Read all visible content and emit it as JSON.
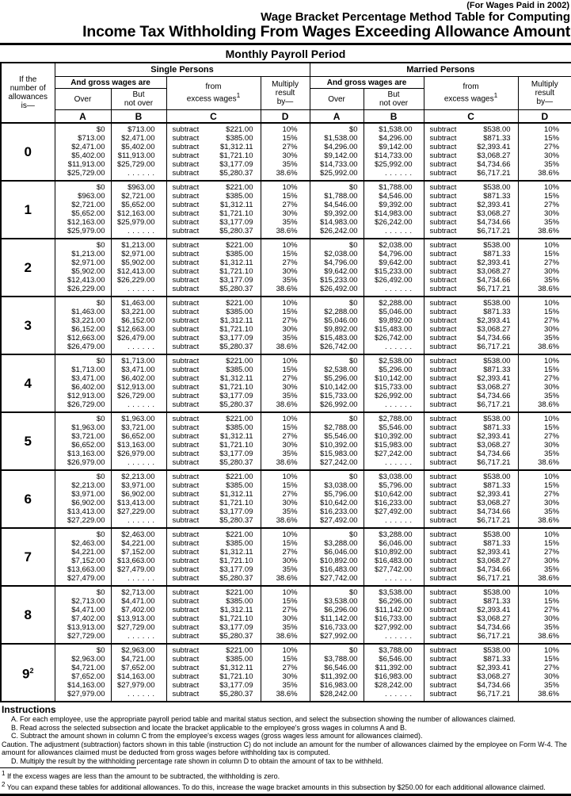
{
  "page": {
    "tagline": "(For Wages Paid in 2002)",
    "title_line1": "Wage Bracket Percentage Method Table for Computing",
    "title_line2": "Income Tax Withholding From Wages Exceeding Allowance Amount",
    "period_title": "Monthly Payroll Period"
  },
  "table": {
    "allowances_header": "If the\nnumber of\nallowances\nis—",
    "single_title": "Single Persons",
    "married_title": "Married Persons",
    "gross_wages_header": "And gross wages are",
    "over_header": "Over",
    "not_over_header": "But\nnot over",
    "excess_line1": "from",
    "excess_line2": "excess wages",
    "excess_sup": "1",
    "multiply_header": "Multiply\nresult\nby—",
    "col_letters": [
      "A",
      "B",
      "C",
      "D"
    ],
    "subtract_word": "subtract",
    "dots": ". . . . . .",
    "multiply_rates": [
      "10%",
      "15%",
      "27%",
      "30%",
      "35%",
      "38.6%"
    ],
    "single_subtract": [
      "$221.00",
      "$385.00",
      "$1,312.11",
      "$1,721.10",
      "$3,177.09",
      "$5,280.37"
    ],
    "married_subtract": [
      "$538.00",
      "$871.33",
      "$2,393.41",
      "$3,068.27",
      "$4,734.66",
      "$6,717.21"
    ],
    "groups": [
      {
        "label": "0",
        "label_sup": "",
        "single_over": [
          "$0",
          "$713.00",
          "$2,471.00",
          "$5,402.00",
          "$11,913.00",
          "$25,729.00"
        ],
        "married_over": [
          "$0",
          "$1,538.00",
          "$4,296.00",
          "$9,142.00",
          "$14,733.00",
          "$25,992.00"
        ]
      },
      {
        "label": "1",
        "label_sup": "",
        "single_over": [
          "$0",
          "$963.00",
          "$2,721.00",
          "$5,652.00",
          "$12,163.00",
          "$25,979.00"
        ],
        "married_over": [
          "$0",
          "$1,788.00",
          "$4,546.00",
          "$9,392.00",
          "$14,983.00",
          "$26,242.00"
        ]
      },
      {
        "label": "2",
        "label_sup": "",
        "single_over": [
          "$0",
          "$1,213.00",
          "$2,971.00",
          "$5,902.00",
          "$12,413.00",
          "$26,229.00"
        ],
        "married_over": [
          "$0",
          "$2,038.00",
          "$4,796.00",
          "$9,642.00",
          "$15,233.00",
          "$26,492.00"
        ]
      },
      {
        "label": "3",
        "label_sup": "",
        "single_over": [
          "$0",
          "$1,463.00",
          "$3,221.00",
          "$6,152.00",
          "$12,663.00",
          "$26,479.00"
        ],
        "married_over": [
          "$0",
          "$2,288.00",
          "$5,046.00",
          "$9,892.00",
          "$15,483.00",
          "$26,742.00"
        ]
      },
      {
        "label": "4",
        "label_sup": "",
        "single_over": [
          "$0",
          "$1,713.00",
          "$3,471.00",
          "$6,402.00",
          "$12,913.00",
          "$26,729.00"
        ],
        "married_over": [
          "$0",
          "$2,538.00",
          "$5,296.00",
          "$10,142.00",
          "$15,733.00",
          "$26,992.00"
        ]
      },
      {
        "label": "5",
        "label_sup": "",
        "single_over": [
          "$0",
          "$1,963.00",
          "$3,721.00",
          "$6,652.00",
          "$13,163.00",
          "$26,979.00"
        ],
        "married_over": [
          "$0",
          "$2,788.00",
          "$5,546.00",
          "$10,392.00",
          "$15,983.00",
          "$27,242.00"
        ]
      },
      {
        "label": "6",
        "label_sup": "",
        "single_over": [
          "$0",
          "$2,213.00",
          "$3,971.00",
          "$6,902.00",
          "$13,413.00",
          "$27,229.00"
        ],
        "married_over": [
          "$0",
          "$3,038.00",
          "$5,796.00",
          "$10,642.00",
          "$16,233.00",
          "$27,492.00"
        ]
      },
      {
        "label": "7",
        "label_sup": "",
        "single_over": [
          "$0",
          "$2,463.00",
          "$4,221.00",
          "$7,152.00",
          "$13,663.00",
          "$27,479.00"
        ],
        "married_over": [
          "$0",
          "$3,288.00",
          "$6,046.00",
          "$10,892.00",
          "$16,483.00",
          "$27,742.00"
        ]
      },
      {
        "label": "8",
        "label_sup": "",
        "single_over": [
          "$0",
          "$2,713.00",
          "$4,471.00",
          "$7,402.00",
          "$13,913.00",
          "$27,729.00"
        ],
        "married_over": [
          "$0",
          "$3,538.00",
          "$6,296.00",
          "$11,142.00",
          "$16,733.00",
          "$27,992.00"
        ]
      },
      {
        "label": "9",
        "label_sup": "2",
        "single_over": [
          "$0",
          "$2,963.00",
          "$4,721.00",
          "$7,652.00",
          "$14,163.00",
          "$27,979.00"
        ],
        "married_over": [
          "$0",
          "$3,788.00",
          "$6,546.00",
          "$11,392.00",
          "$16,983.00",
          "$28,242.00"
        ]
      }
    ]
  },
  "instructions": {
    "heading": "Instructions",
    "items": [
      {
        "indent": true,
        "text": "A. For each employee, use the appropriate payroll period table and marital status section, and select the subsection showing the number of allowances claimed."
      },
      {
        "indent": true,
        "text": "B. Read across the selected subsection and locate the bracket applicable to the employee's gross wages in columns A and B."
      },
      {
        "indent": true,
        "text": "C. Subtract the amount shown in column C from the employee's excess wages (gross wages less amount for allowances claimed)."
      },
      {
        "indent": false,
        "text": "Caution.   The adjustment (subtraction) factors shown in this table (instruction C) do not include an amount for the number of allowances claimed by the employee on Form W-4. The amount for allowances claimed must be deducted from gross wages before withholding tax is computed."
      },
      {
        "indent": true,
        "text": "D. Multiply the result by the withholding percentage rate shown in column D to obtain the amount of tax to be withheld."
      }
    ]
  },
  "footnotes": [
    {
      "ref": "1",
      "text": "If the excess wages are less than the amount to be subtracted, the withholding is zero."
    },
    {
      "ref": "2",
      "text": "You can expand these tables for additional allowances. To do this, increase the wage bracket amounts in this subsection by $250.00 for each additional allowance claimed."
    }
  ]
}
